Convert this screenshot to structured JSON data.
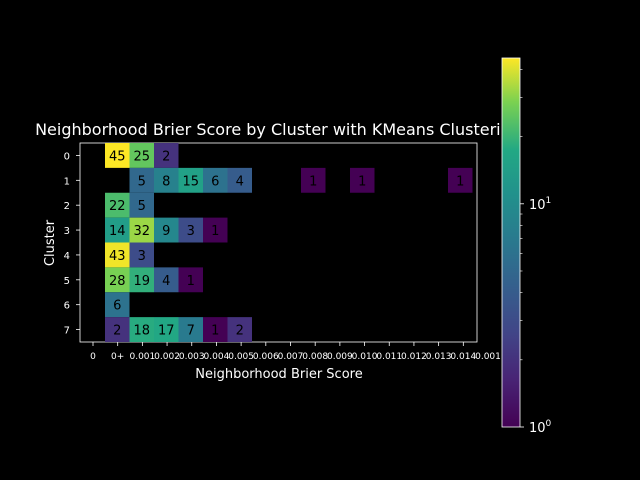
{
  "chart_data": {
    "type": "heatmap",
    "title": "Neighborhood Brier Score by Cluster with KMeans Clustering",
    "xlabel": "Neighborhood Brier Score",
    "ylabel": "Cluster",
    "x_tick_labels": [
      "0",
      "0+",
      "0.001",
      "0.002",
      "0.003",
      "0.004",
      "0.005",
      "0.006",
      "0.007",
      "0.008",
      "0.009",
      "0.010",
      "0.011",
      "0.012",
      "0.013",
      "0.014",
      "0.001"
    ],
    "clusters": [
      "0",
      "1",
      "2",
      "3",
      "4",
      "5",
      "6",
      "7"
    ],
    "colorscale": "viridis",
    "color_scale_type": "log",
    "colorbar_ticks": [
      {
        "label": "10",
        "sup": "0",
        "value": 1
      },
      {
        "label": "10",
        "sup": "1",
        "value": 10
      }
    ],
    "vmin": 1,
    "vmax": 45,
    "bins": 15,
    "counts": [
      [
        45,
        25,
        2,
        null,
        null,
        null,
        null,
        null,
        null,
        null,
        null,
        null,
        null,
        null,
        null
      ],
      [
        null,
        5,
        8,
        15,
        6,
        4,
        null,
        null,
        1,
        null,
        1,
        null,
        null,
        null,
        1
      ],
      [
        22,
        5,
        null,
        null,
        null,
        null,
        null,
        null,
        null,
        null,
        null,
        null,
        null,
        null,
        null
      ],
      [
        14,
        32,
        9,
        3,
        1,
        null,
        null,
        null,
        null,
        null,
        null,
        null,
        null,
        null,
        null
      ],
      [
        43,
        3,
        null,
        null,
        null,
        null,
        null,
        null,
        null,
        null,
        null,
        null,
        null,
        null,
        null
      ],
      [
        28,
        19,
        4,
        1,
        null,
        null,
        null,
        null,
        null,
        null,
        null,
        null,
        null,
        null,
        null
      ],
      [
        6,
        null,
        null,
        null,
        null,
        null,
        null,
        null,
        null,
        null,
        null,
        null,
        null,
        null,
        null
      ],
      [
        2,
        18,
        17,
        7,
        1,
        2,
        null,
        null,
        null,
        null,
        null,
        null,
        null,
        null,
        null
      ]
    ]
  }
}
